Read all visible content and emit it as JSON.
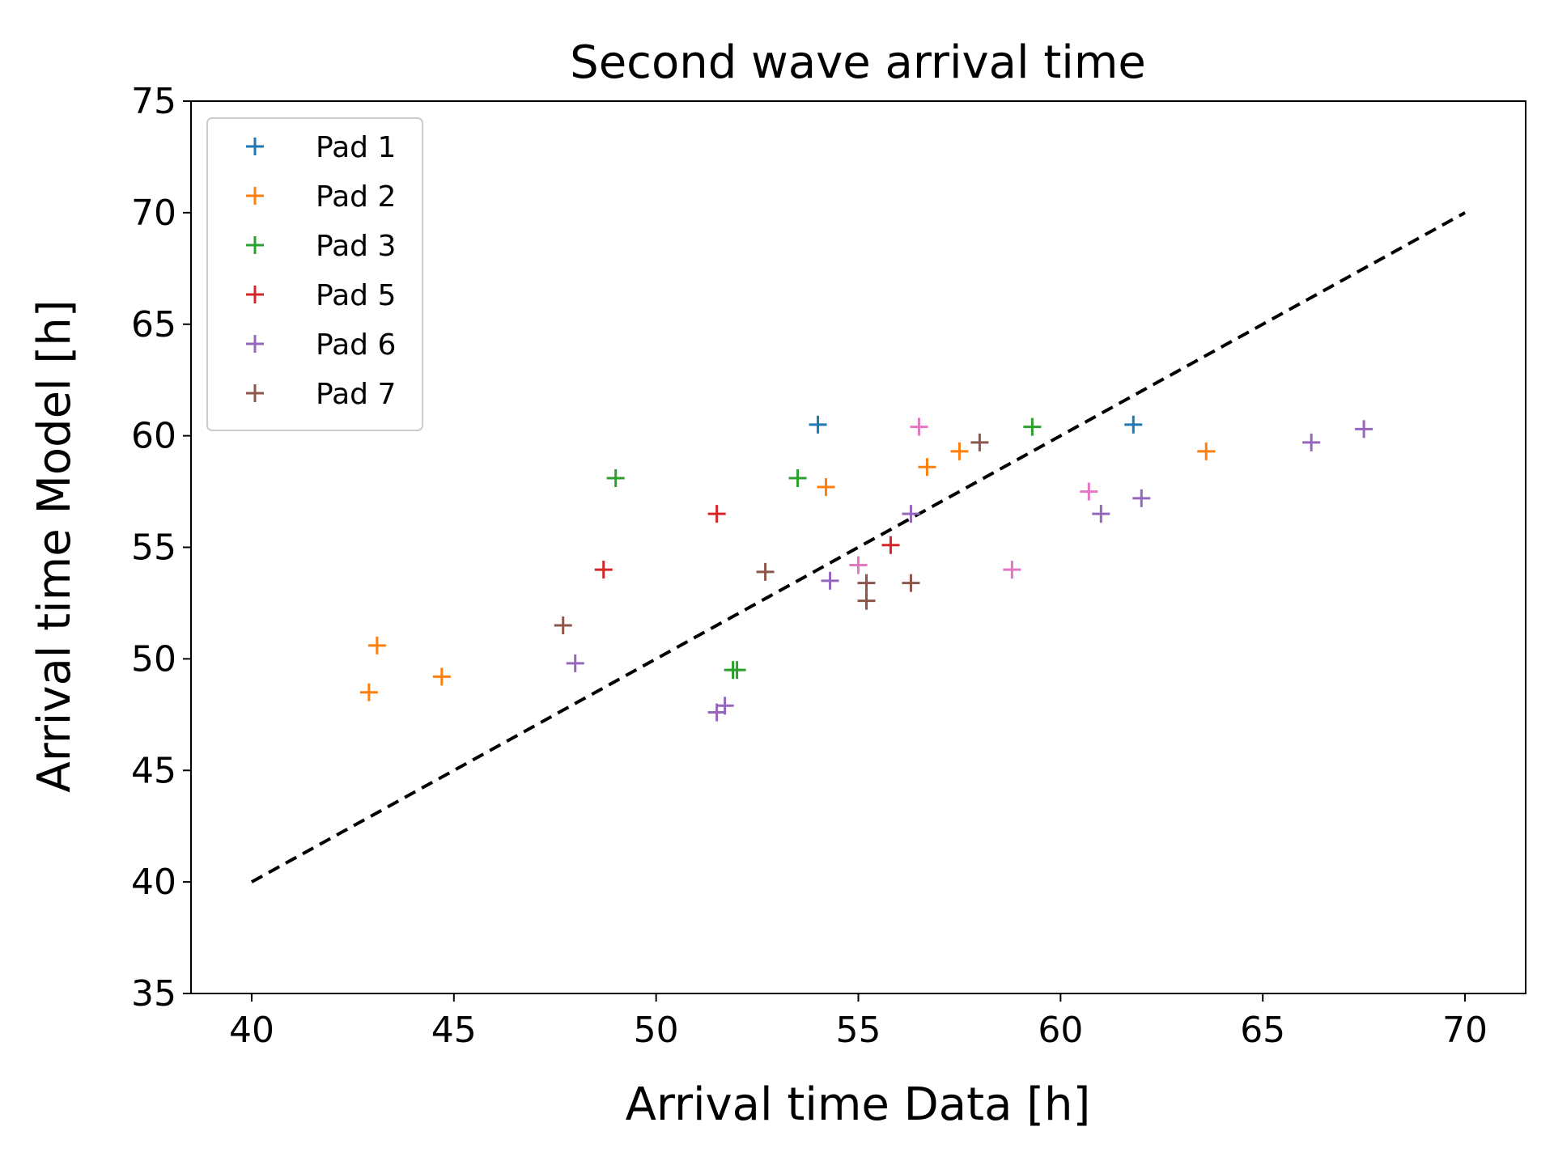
{
  "chart_data": {
    "type": "scatter",
    "title": "Second wave arrival time",
    "xlabel": "Arrival time Data [h]",
    "ylabel": "Arrival time Model [h]",
    "xlim": [
      38.5,
      71.5
    ],
    "ylim": [
      35,
      75
    ],
    "xticks": [
      40,
      45,
      50,
      55,
      60,
      65,
      70
    ],
    "yticks": [
      35,
      40,
      45,
      50,
      55,
      60,
      65,
      70,
      75
    ],
    "grid": false,
    "legend_position": "top-left",
    "marker": "plus",
    "reference_line": {
      "x": [
        40,
        70
      ],
      "y": [
        40,
        70
      ],
      "style": "dashed",
      "color": "#000000"
    },
    "series": [
      {
        "name": "Pad 1",
        "color": "#1f77b4",
        "in_legend": true,
        "x": [
          54.0,
          61.8
        ],
        "y": [
          60.5,
          60.5
        ]
      },
      {
        "name": "Pad 2",
        "color": "#ff7f0e",
        "in_legend": true,
        "x": [
          42.9,
          43.1,
          44.7,
          54.2,
          56.7,
          57.5,
          63.6
        ],
        "y": [
          48.5,
          50.6,
          49.2,
          57.7,
          58.6,
          59.3,
          59.3
        ]
      },
      {
        "name": "Pad 3",
        "color": "#2ca02c",
        "in_legend": true,
        "x": [
          49.0,
          51.9,
          52.0,
          53.5,
          59.3
        ],
        "y": [
          58.1,
          49.5,
          49.5,
          58.1,
          60.4
        ]
      },
      {
        "name": "Pad 5",
        "color": "#d62728",
        "in_legend": true,
        "x": [
          48.7,
          51.5,
          55.8
        ],
        "y": [
          54.0,
          56.5,
          55.1
        ]
      },
      {
        "name": "Pad 6",
        "color": "#9467bd",
        "in_legend": true,
        "x": [
          48.0,
          51.5,
          51.7,
          54.3,
          56.3,
          61.0,
          62.0,
          66.2,
          67.5
        ],
        "y": [
          49.8,
          47.6,
          47.9,
          53.5,
          56.5,
          56.5,
          57.2,
          59.7,
          60.3
        ]
      },
      {
        "name": "Pad 7",
        "color": "#8c564b",
        "in_legend": true,
        "x": [
          47.7,
          52.7,
          55.2,
          55.2,
          56.3,
          58.0
        ],
        "y": [
          51.5,
          53.9,
          53.4,
          52.6,
          53.4,
          59.7
        ]
      },
      {
        "name": "",
        "color": "#e377c2",
        "in_legend": false,
        "x": [
          55.0,
          56.5,
          58.8,
          60.7
        ],
        "y": [
          54.2,
          60.4,
          54.0,
          57.5
        ]
      }
    ]
  }
}
